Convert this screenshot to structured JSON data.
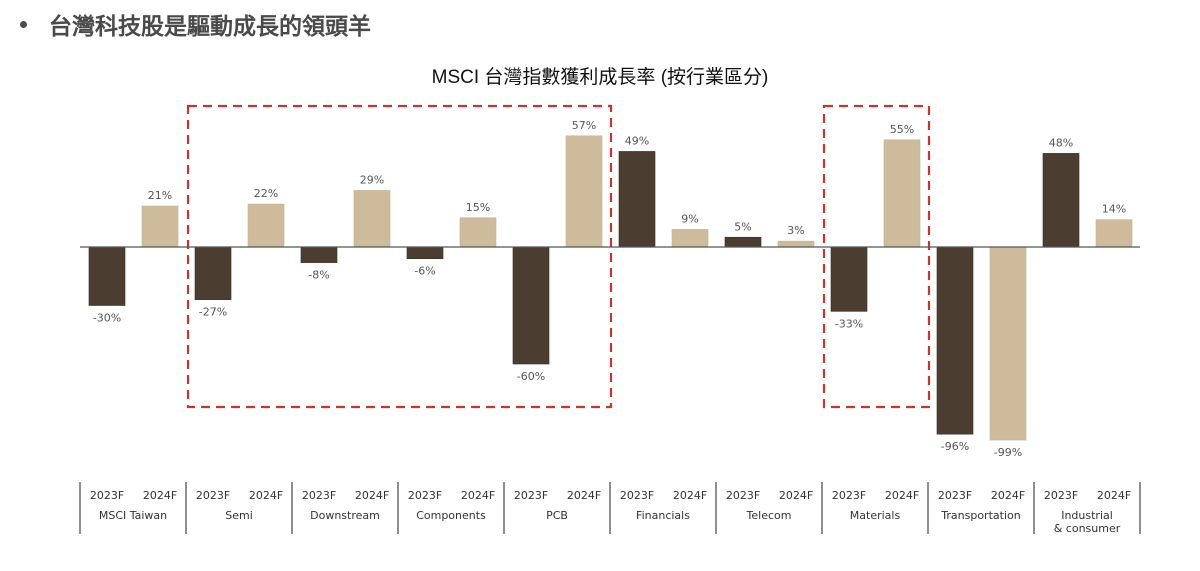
{
  "headline": "台灣科技股是驅動成長的領頭羊",
  "chart_data": {
    "type": "bar",
    "title": "MSCI 台灣指數獲利成長率 (按行業區分)",
    "xlabel": "",
    "ylabel": "",
    "ylim": [
      -100,
      60
    ],
    "grid": false,
    "legend": "none",
    "series_names": [
      "2023F",
      "2024F"
    ],
    "colors": {
      "2023F": "#4b3d30",
      "2024F": "#cdbb9c",
      "highlight_box": "#c8342e",
      "axis": "#555555"
    },
    "categories": [
      "MSCI Taiwan",
      "Semi",
      "Downstream",
      "Components",
      "PCB",
      "Financials",
      "Telecom",
      "Materials",
      "Transportation",
      "Industrial\n& consumer"
    ],
    "series": [
      {
        "name": "2023F",
        "values": [
          -30,
          -27,
          -8,
          -6,
          -60,
          49,
          5,
          -33,
          -96,
          48
        ]
      },
      {
        "name": "2024F",
        "values": [
          21,
          22,
          29,
          15,
          57,
          9,
          3,
          55,
          -99,
          14
        ]
      }
    ],
    "data_labels": {
      "2023F": [
        "-30%",
        "-27%",
        "-8%",
        "-6%",
        "-60%",
        "49%",
        "5%",
        "-33%",
        "-96%",
        "48%"
      ],
      "2024F": [
        "21%",
        "22%",
        "29%",
        "15%",
        "57%",
        "9%",
        "3%",
        "55%",
        "-99%",
        "14%"
      ]
    },
    "highlight_groups": [
      [
        "Semi",
        "Downstream",
        "Components",
        "PCB"
      ],
      [
        "Materials"
      ]
    ]
  }
}
